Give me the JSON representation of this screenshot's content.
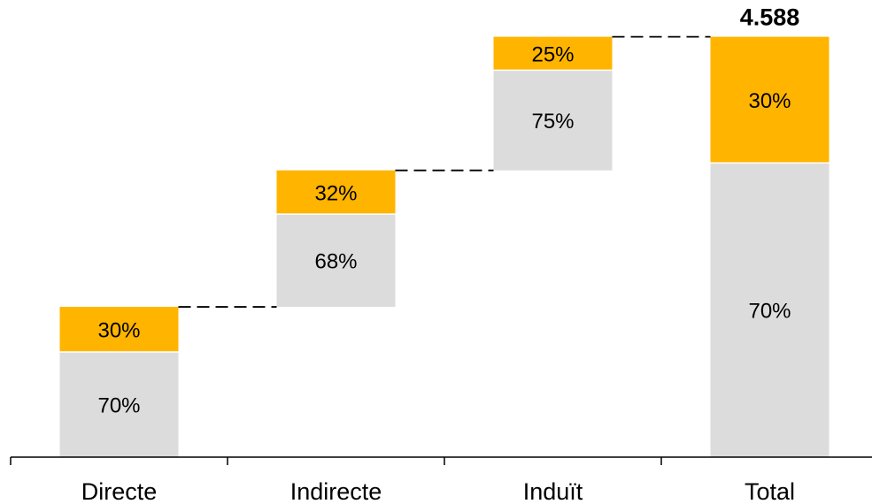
{
  "chart_data": {
    "type": "bar",
    "subtype": "waterfall",
    "categories": [
      "Directe",
      "Indirecte",
      "Induït",
      "Total"
    ],
    "series": [
      {
        "values": [
          70,
          68,
          75,
          70
        ],
        "labels": [
          "70%",
          "68%",
          "75%",
          "70%"
        ],
        "color": "#DCDCDC"
      },
      {
        "values": [
          30,
          32,
          25,
          30
        ],
        "labels": [
          "30%",
          "32%",
          "25%",
          "30%"
        ],
        "color": "#FFB400"
      }
    ],
    "bar_totals": [
      1640,
      1490,
      1458,
      4588
    ],
    "bar_starts": [
      0,
      1640,
      3130,
      0
    ],
    "total_label": "4.588",
    "ylim": [
      0,
      4700
    ],
    "connector_style": "dashed",
    "grid": false,
    "legend": "none"
  }
}
